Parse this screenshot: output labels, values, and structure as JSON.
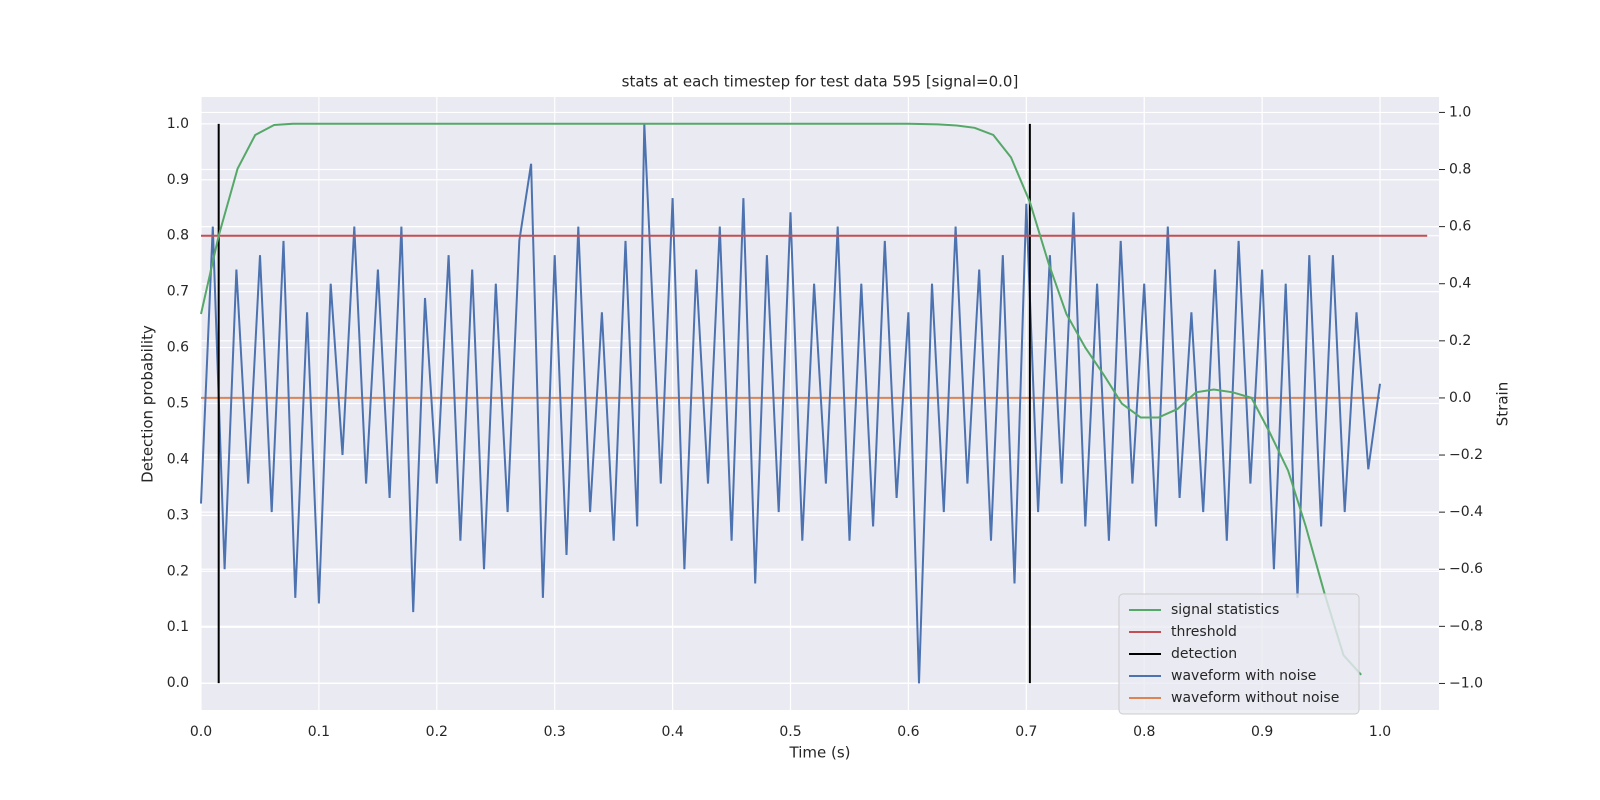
{
  "chart_data": {
    "type": "line",
    "title": "stats at each timestep for test data 595 [signal=0.0]",
    "xlabel": "Time (s)",
    "ylabel": "Detection probability",
    "y2label": "Strain",
    "xlim": [
      0,
      1.05
    ],
    "ylim": [
      -0.048,
      1.048
    ],
    "y2lim": [
      -1.093,
      1.054
    ],
    "xticks": [
      {
        "value": 0,
        "label": "0.0"
      },
      {
        "value": 0.1,
        "label": "0.1"
      },
      {
        "value": 0.2,
        "label": "0.2"
      },
      {
        "value": 0.3,
        "label": "0.3"
      },
      {
        "value": 0.4,
        "label": "0.4"
      },
      {
        "value": 0.5,
        "label": "0.5"
      },
      {
        "value": 0.6,
        "label": "0.6"
      },
      {
        "value": 0.7,
        "label": "0.7"
      },
      {
        "value": 0.8,
        "label": "0.8"
      },
      {
        "value": 0.9,
        "label": "0.9"
      },
      {
        "value": 1,
        "label": "1.0"
      }
    ],
    "yticks": [
      {
        "value": 0,
        "label": "0.0"
      },
      {
        "value": 0.1,
        "label": "0.1"
      },
      {
        "value": 0.2,
        "label": "0.2"
      },
      {
        "value": 0.3,
        "label": "0.3"
      },
      {
        "value": 0.4,
        "label": "0.4"
      },
      {
        "value": 0.5,
        "label": "0.5"
      },
      {
        "value": 0.6,
        "label": "0.6"
      },
      {
        "value": 0.7,
        "label": "0.7"
      },
      {
        "value": 0.8,
        "label": "0.8"
      },
      {
        "value": 0.9,
        "label": "0.9"
      },
      {
        "value": 1,
        "label": "1.0"
      }
    ],
    "y2ticks": [
      {
        "value": -1,
        "label": "−1.0"
      },
      {
        "value": -0.8,
        "label": "−0.8"
      },
      {
        "value": -0.6,
        "label": "−0.6"
      },
      {
        "value": -0.4,
        "label": "−0.4"
      },
      {
        "value": -0.2,
        "label": "−0.2"
      },
      {
        "value": 0,
        "label": "0.0"
      },
      {
        "value": 0.2,
        "label": "0.2"
      },
      {
        "value": 0.4,
        "label": "0.4"
      },
      {
        "value": 0.6,
        "label": "0.6"
      },
      {
        "value": 0.8,
        "label": "0.8"
      },
      {
        "value": 1,
        "label": "1.0"
      }
    ],
    "grid": true,
    "legend": "lower right",
    "series": [
      {
        "name": "signal statistics",
        "color": "#55a868",
        "axis": "y",
        "x": [
          0,
          0.015,
          0.031,
          0.046,
          0.062,
          0.078,
          0.094,
          0.2,
          0.3,
          0.4,
          0.5,
          0.6,
          0.625,
          0.641,
          0.656,
          0.672,
          0.687,
          0.703,
          0.719,
          0.734,
          0.75,
          0.766,
          0.781,
          0.797,
          0.812,
          0.828,
          0.844,
          0.859,
          0.875,
          0.891,
          0.906,
          0.922,
          0.937,
          0.953,
          0.969,
          0.984
        ],
        "values": [
          0.66,
          0.8,
          0.92,
          0.98,
          0.998,
          1,
          1,
          1,
          1,
          1,
          1,
          1,
          0.999,
          0.997,
          0.993,
          0.98,
          0.94,
          0.86,
          0.75,
          0.66,
          0.6,
          0.55,
          0.5,
          0.475,
          0.475,
          0.49,
          0.52,
          0.525,
          0.52,
          0.51,
          0.45,
          0.38,
          0.28,
          0.16,
          0.05,
          0.015
        ]
      },
      {
        "name": "threshold",
        "color": "#c44e52",
        "axis": "y",
        "x": [
          0,
          1.04
        ],
        "values": [
          0.8,
          0.8
        ]
      },
      {
        "name": "detection",
        "color": "#000000",
        "axis": "y",
        "x": [
          0.015,
          0.703
        ],
        "ymin": 0,
        "ymax": 1
      },
      {
        "name": "waveform with noise",
        "color": "#4c72b0",
        "axis": "y2",
        "x": [
          0,
          0.01,
          0.02,
          0.03,
          0.04,
          0.05,
          0.06,
          0.07,
          0.08,
          0.09,
          0.1,
          0.11,
          0.12,
          0.13,
          0.14,
          0.15,
          0.16,
          0.17,
          0.18,
          0.19,
          0.2,
          0.21,
          0.22,
          0.23,
          0.24,
          0.25,
          0.26,
          0.27,
          0.28,
          0.29,
          0.3,
          0.31,
          0.32,
          0.33,
          0.34,
          0.35,
          0.36,
          0.37,
          0.376,
          0.39,
          0.4,
          0.41,
          0.42,
          0.43,
          0.44,
          0.45,
          0.46,
          0.47,
          0.48,
          0.49,
          0.5,
          0.51,
          0.52,
          0.53,
          0.54,
          0.55,
          0.56,
          0.57,
          0.58,
          0.59,
          0.6,
          0.609,
          0.62,
          0.63,
          0.64,
          0.65,
          0.66,
          0.67,
          0.68,
          0.69,
          0.7,
          0.71,
          0.72,
          0.73,
          0.74,
          0.75,
          0.76,
          0.77,
          0.78,
          0.79,
          0.8,
          0.81,
          0.82,
          0.83,
          0.84,
          0.85,
          0.86,
          0.87,
          0.88,
          0.89,
          0.9,
          0.91,
          0.92,
          0.93,
          0.94,
          0.95,
          0.96,
          0.97,
          0.98,
          0.99,
          1
        ],
        "values": [
          -0.37,
          0.6,
          -0.6,
          0.45,
          -0.3,
          0.5,
          -0.4,
          0.55,
          -0.7,
          0.3,
          -0.72,
          0.4,
          -0.2,
          0.6,
          -0.3,
          0.45,
          -0.35,
          0.6,
          -0.75,
          0.35,
          -0.3,
          0.5,
          -0.5,
          0.45,
          -0.6,
          0.4,
          -0.4,
          0.55,
          0.82,
          -0.7,
          0.5,
          -0.55,
          0.6,
          -0.4,
          0.3,
          -0.5,
          0.55,
          -0.45,
          0.96,
          -0.3,
          0.7,
          -0.6,
          0.45,
          -0.3,
          0.6,
          -0.5,
          0.7,
          -0.65,
          0.5,
          -0.4,
          0.65,
          -0.5,
          0.4,
          -0.3,
          0.6,
          -0.5,
          0.4,
          -0.45,
          0.55,
          -0.35,
          0.3,
          -1.0,
          0.4,
          -0.4,
          0.6,
          -0.3,
          0.45,
          -0.5,
          0.5,
          -0.65,
          0.68,
          -0.4,
          0.5,
          -0.3,
          0.65,
          -0.45,
          0.4,
          -0.5,
          0.55,
          -0.3,
          0.4,
          -0.45,
          0.6,
          -0.35,
          0.3,
          -0.4,
          0.45,
          -0.5,
          0.55,
          -0.3,
          0.45,
          -0.6,
          0.4,
          -0.7,
          0.5,
          -0.45,
          0.5,
          -0.4,
          0.3,
          -0.25,
          0.05
        ]
      },
      {
        "name": "waveform without noise",
        "color": "#dd8452",
        "axis": "y2",
        "x": [
          0,
          1
        ],
        "values": [
          0,
          0
        ]
      }
    ]
  }
}
